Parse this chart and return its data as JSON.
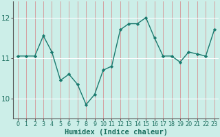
{
  "x": [
    0,
    1,
    2,
    3,
    4,
    5,
    6,
    7,
    8,
    9,
    10,
    11,
    12,
    13,
    14,
    15,
    16,
    17,
    18,
    19,
    20,
    21,
    22,
    23
  ],
  "y": [
    11.05,
    11.05,
    11.05,
    11.55,
    11.15,
    10.45,
    10.6,
    10.35,
    9.85,
    10.1,
    10.7,
    10.8,
    11.7,
    11.85,
    11.85,
    12.0,
    11.5,
    11.05,
    11.05,
    10.9,
    11.15,
    11.1,
    11.05,
    11.7
  ],
  "line_color": "#1a7a6e",
  "marker": "D",
  "marker_size": 2.2,
  "bg_color": "#cceee8",
  "grid_color_v": "#d4a0a0",
  "grid_color_h": "#ffffff",
  "xlabel": "Humidex (Indice chaleur)",
  "yticks": [
    10,
    11,
    12
  ],
  "ylim": [
    9.5,
    12.4
  ],
  "xlim": [
    -0.5,
    23.5
  ],
  "xtick_labels": [
    "0",
    "1",
    "2",
    "3",
    "4",
    "5",
    "6",
    "7",
    "8",
    "9",
    "10",
    "11",
    "12",
    "13",
    "14",
    "15",
    "16",
    "17",
    "18",
    "19",
    "20",
    "21",
    "22",
    "23"
  ],
  "axis_color": "#555555",
  "line_width": 1.0,
  "font_color": "#1a6e5e",
  "xlabel_fontsize": 7.5,
  "ytick_fontsize": 7.5,
  "xtick_fontsize": 5.8
}
